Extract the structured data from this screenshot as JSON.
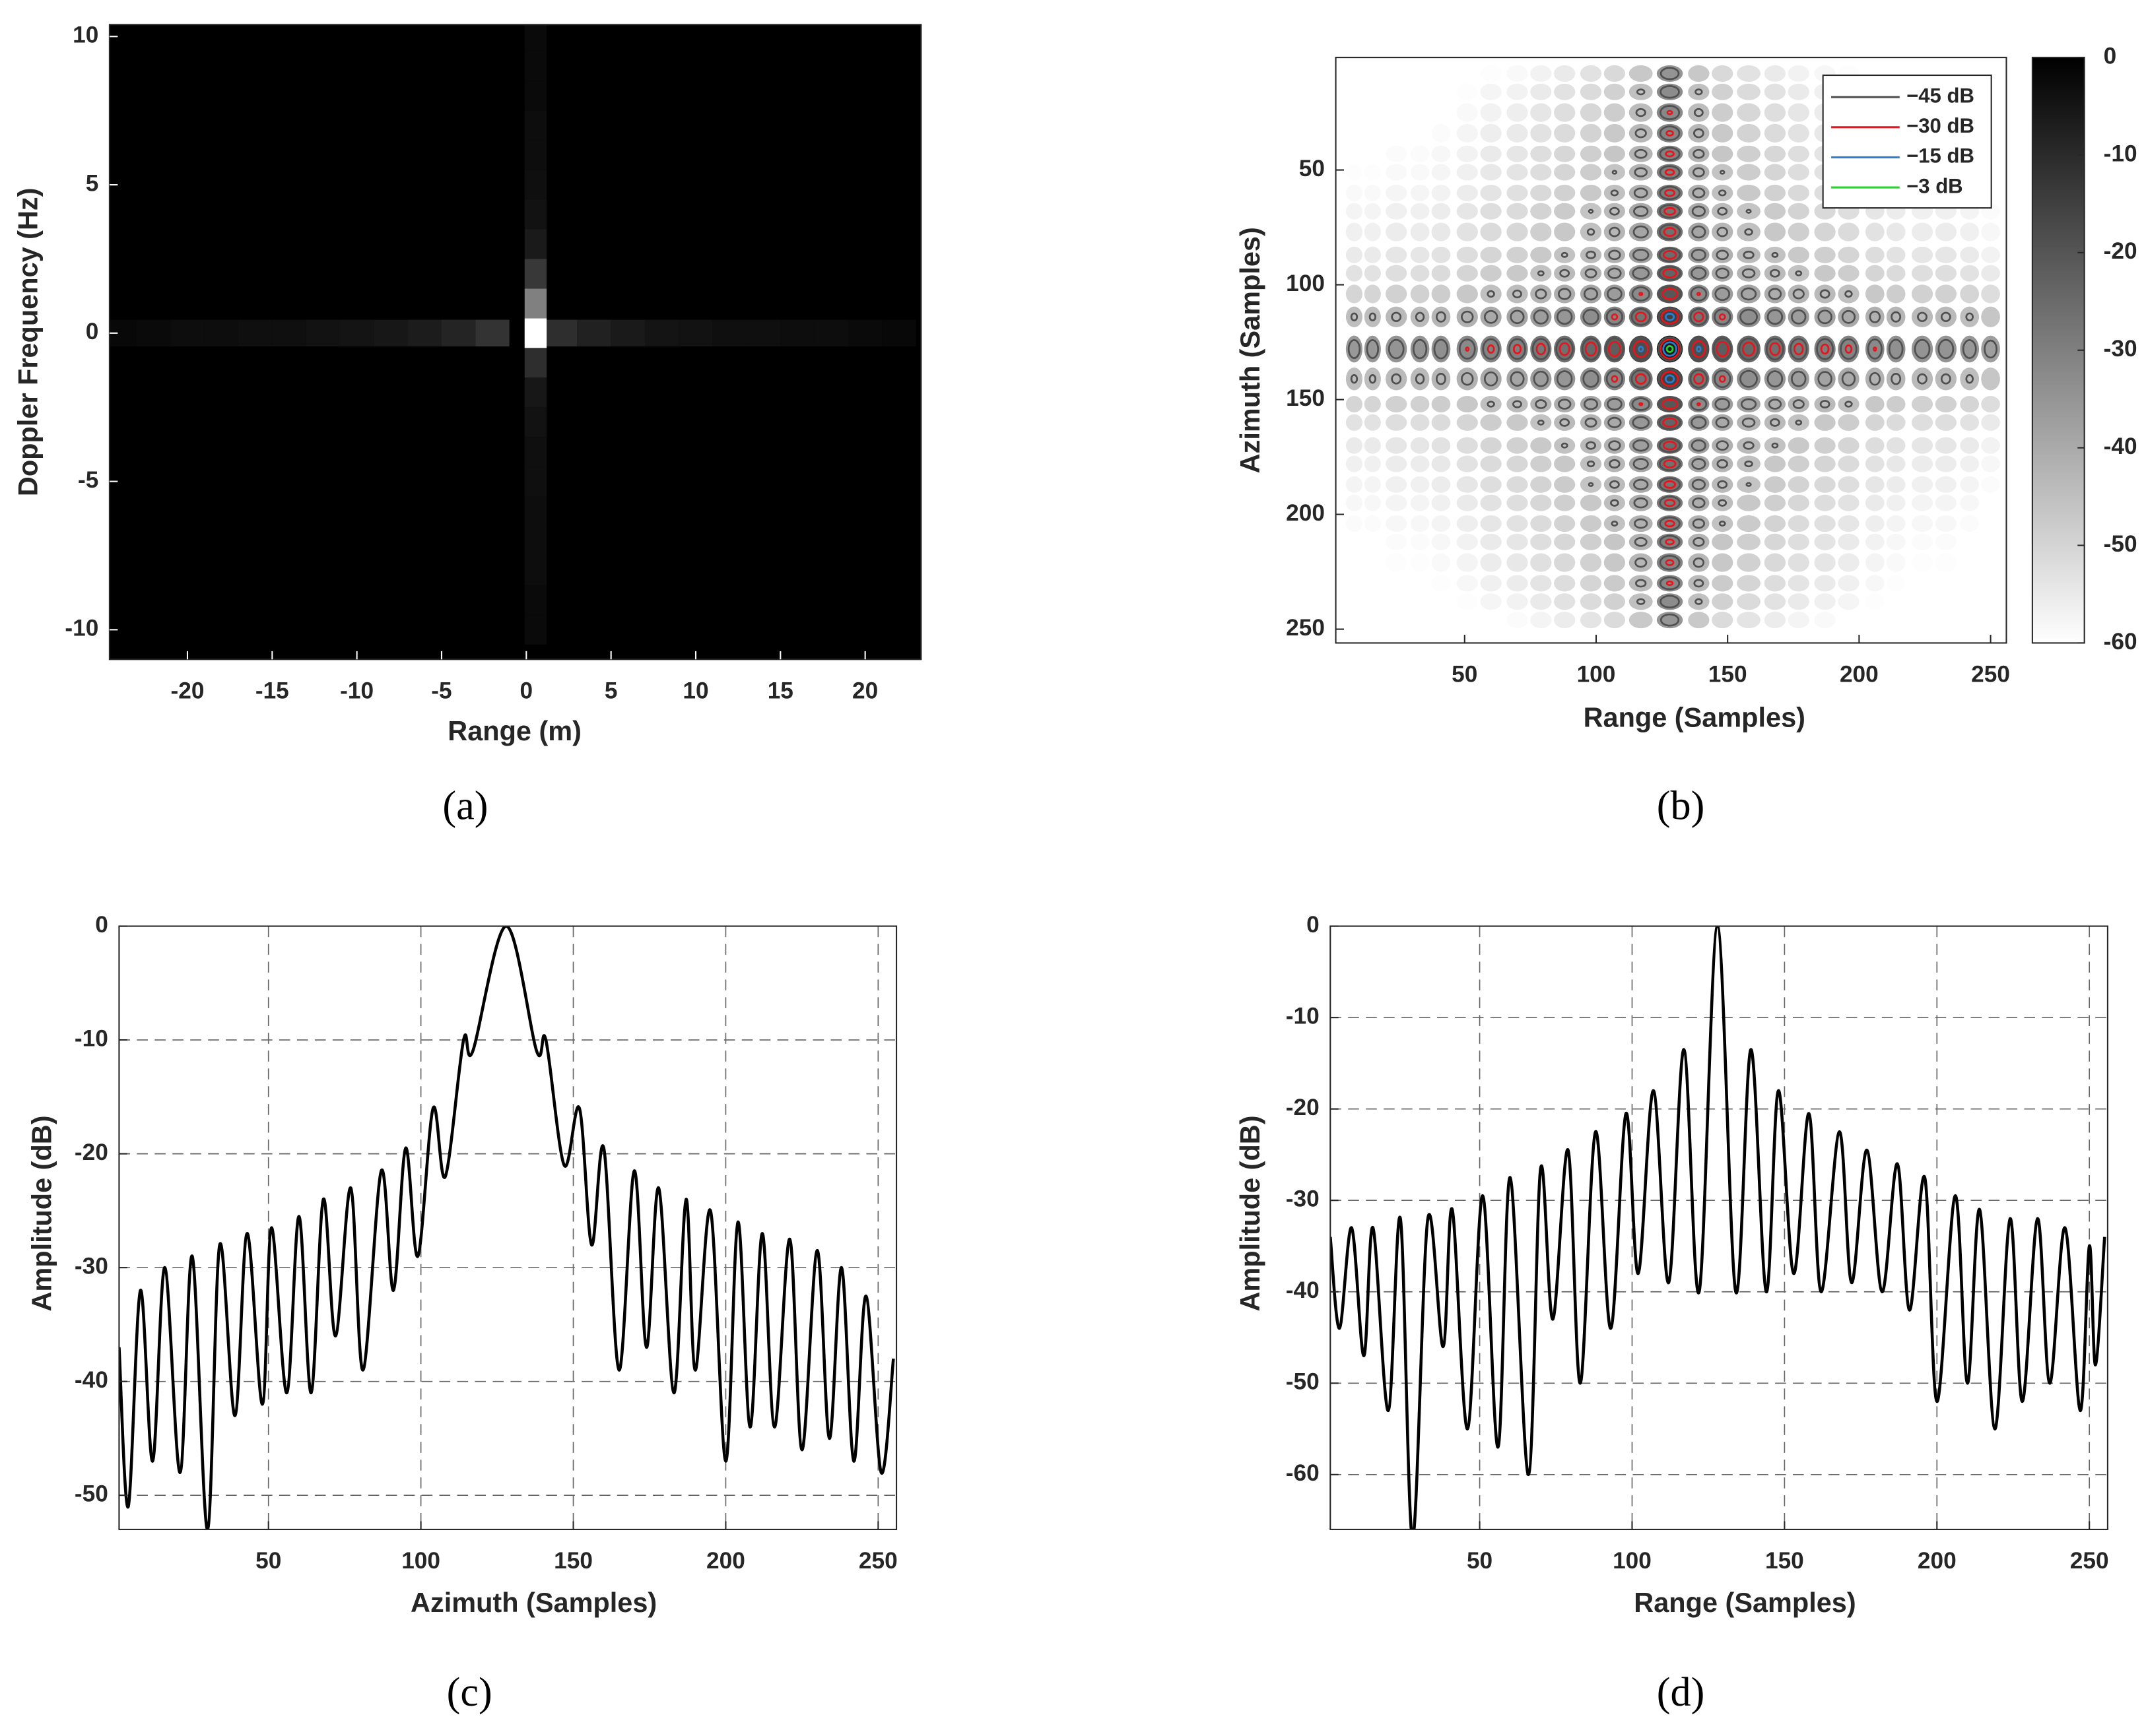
{
  "chart_data": [
    {
      "type": "heatmap",
      "x_label": "Range (m)",
      "y_label": "Doppler Frequency (Hz)",
      "caption": "(a)",
      "xlim": [
        -24.6,
        23.3
      ],
      "ylim": [
        -11,
        10.4
      ],
      "xticks": [
        -20,
        -15,
        -10,
        -5,
        0,
        5,
        10,
        15,
        20
      ],
      "yticks": [
        -10,
        -5,
        0,
        5,
        10
      ],
      "colormap": "gray",
      "column": {
        "y": [
          -10,
          -9,
          -8,
          -7,
          -6,
          -5,
          -4,
          -3,
          -2,
          -1,
          0,
          1,
          2,
          3,
          4,
          5,
          6,
          7,
          8,
          9,
          10
        ],
        "values": [
          0.04,
          0.04,
          0.05,
          0.05,
          0.05,
          0.06,
          0.06,
          0.07,
          0.09,
          0.18,
          1,
          0.5,
          0.22,
          0.1,
          0.07,
          0.06,
          0.05,
          0.05,
          0.04,
          0.04,
          0.04
        ]
      },
      "row": {
        "x": [
          -24,
          -22,
          -20,
          -18,
          -16,
          -14,
          -12,
          -10,
          -8,
          -6,
          -4,
          -2,
          2,
          4,
          6,
          8,
          10,
          12,
          14,
          16,
          18,
          20,
          22
        ],
        "values": [
          0.03,
          0.04,
          0.05,
          0.05,
          0.06,
          0.06,
          0.07,
          0.08,
          0.09,
          0.11,
          0.14,
          0.2,
          0.18,
          0.13,
          0.1,
          0.08,
          0.07,
          0.06,
          0.06,
          0.05,
          0.05,
          0.04,
          0.03
        ]
      }
    },
    {
      "type": "contour",
      "x_label": "Range (Samples)",
      "y_label": "Azimuth (Samples)",
      "caption": "(b)",
      "xlim": [
        1,
        256
      ],
      "ylim": [
        1,
        256
      ],
      "y_reversed": true,
      "xticks": [
        50,
        100,
        150,
        200,
        250
      ],
      "yticks": [
        50,
        100,
        150,
        200,
        250
      ],
      "clim": [
        -60,
        0
      ],
      "cticks": [
        0,
        -10,
        -20,
        -30,
        -40,
        -50,
        -60
      ],
      "contours": [
        {
          "name": "−45 dB",
          "level": -45,
          "color": "#505050"
        },
        {
          "name": "−30 dB",
          "level": -30,
          "color": "#e8141b"
        },
        {
          "name": "−15 dB",
          "level": -15,
          "color": "#2a7fd4"
        },
        {
          "name": "−3 dB",
          "level": -3,
          "color": "#2bd12b"
        }
      ]
    },
    {
      "type": "line",
      "x_label": "Azimuth (Samples)",
      "y_label": "Amplitude (dB)",
      "caption": "(c)",
      "grid": true,
      "color": "#000000",
      "xlim": [
        1,
        256
      ],
      "ylim": [
        -53,
        0
      ],
      "xticks": [
        50,
        100,
        150,
        200,
        250
      ],
      "yticks": [
        0,
        -10,
        -20,
        -30,
        -40,
        -50
      ],
      "x": [
        1,
        4,
        8,
        12,
        16,
        21,
        25,
        30,
        34,
        39,
        43,
        48,
        51,
        56,
        60,
        64,
        68,
        72,
        77,
        81,
        87,
        91,
        95,
        99,
        104,
        108,
        114,
        117,
        128,
        138,
        141,
        147,
        152,
        156,
        160,
        165,
        170,
        174,
        178,
        183,
        187,
        190,
        195,
        200,
        204,
        208,
        212,
        216,
        221,
        225,
        230,
        234,
        238,
        242,
        246,
        251,
        255
      ],
      "values": [
        -37,
        -51,
        -32,
        -47,
        -30,
        -48,
        -29,
        -53,
        -28,
        -43,
        -27,
        -42,
        -26.5,
        -41,
        -25.5,
        -41,
        -24,
        -36,
        -23,
        -39,
        -21.5,
        -32,
        -19.5,
        -29,
        -16,
        -22,
        -10,
        -11,
        0,
        -11,
        -10,
        -21,
        -16,
        -28,
        -19.5,
        -39,
        -21.5,
        -37,
        -23,
        -41,
        -24,
        -39,
        -25,
        -47,
        -26,
        -44,
        -27,
        -44,
        -27.5,
        -46,
        -28.5,
        -45,
        -30,
        -47,
        -32.5,
        -48,
        -38
      ]
    },
    {
      "type": "line",
      "x_label": "Range (Samples)",
      "y_label": "Amplitude (dB)",
      "caption": "(d)",
      "grid": true,
      "color": "#000000",
      "xlim": [
        1,
        256
      ],
      "ylim": [
        -66,
        0
      ],
      "xticks": [
        50,
        100,
        150,
        200,
        250
      ],
      "yticks": [
        0,
        -10,
        -20,
        -30,
        -40,
        -50,
        -60
      ],
      "x": [
        1,
        4,
        8,
        12,
        15,
        20,
        24,
        28,
        33,
        38,
        41,
        46,
        51,
        56,
        60,
        66,
        70,
        74,
        79,
        83,
        88,
        93,
        98,
        102,
        107,
        112,
        117,
        122,
        128,
        134,
        139,
        144,
        148,
        153,
        158,
        162,
        168,
        172,
        177,
        182,
        187,
        191,
        196,
        200,
        206,
        210,
        214,
        219,
        224,
        228,
        233,
        237,
        242,
        247,
        250,
        252,
        255
      ],
      "values": [
        -34,
        -44,
        -33,
        -47,
        -33,
        -53,
        -32,
        -67,
        -32,
        -46,
        -31,
        -55,
        -29.5,
        -57,
        -27.5,
        -60,
        -26.5,
        -43,
        -24.5,
        -50,
        -22.5,
        -44,
        -20.5,
        -38,
        -18,
        -39,
        -13.5,
        -40,
        0,
        -40,
        -13.5,
        -40,
        -18,
        -38,
        -20.5,
        -40,
        -22.5,
        -39,
        -24.5,
        -40,
        -26,
        -42,
        -27.5,
        -52,
        -29.5,
        -50,
        -31,
        -55,
        -32,
        -52,
        -32,
        -50,
        -33,
        -53,
        -35,
        -48,
        -34
      ]
    }
  ]
}
